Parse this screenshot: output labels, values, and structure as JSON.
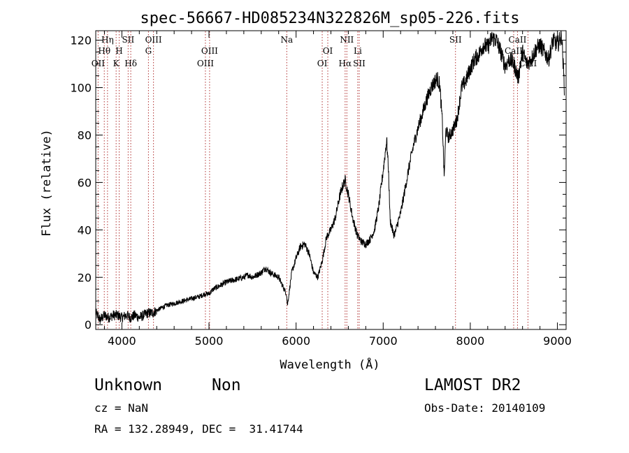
{
  "chart_data": {
    "type": "line",
    "title": "spec-56667-HD085234N322826M_sp05-226.fits",
    "xlabel": "Wavelength (Å)",
    "ylabel": "Flux (relative)",
    "xlim": [
      3700,
      9100
    ],
    "ylim": [
      -2,
      124
    ],
    "xticks": [
      4000,
      5000,
      6000,
      7000,
      8000,
      9000
    ],
    "yticks": [
      0,
      20,
      40,
      60,
      80,
      100,
      120
    ],
    "grid": false,
    "line_color": "#000000",
    "marker_color": "#b03030",
    "spectrum": {
      "x": [
        3700,
        3750,
        3800,
        3850,
        3900,
        3950,
        4000,
        4050,
        4100,
        4150,
        4200,
        4250,
        4300,
        4350,
        4400,
        4450,
        4500,
        4600,
        4700,
        4800,
        4900,
        4950,
        5000,
        5050,
        5100,
        5150,
        5200,
        5300,
        5400,
        5450,
        5500,
        5550,
        5600,
        5650,
        5700,
        5750,
        5800,
        5850,
        5890,
        5900,
        5950,
        6000,
        6050,
        6100,
        6150,
        6200,
        6250,
        6300,
        6350,
        6400,
        6450,
        6500,
        6530,
        6563,
        6600,
        6650,
        6700,
        6750,
        6800,
        6850,
        6900,
        6950,
        7000,
        7040,
        7060,
        7080,
        7100,
        7120,
        7140,
        7160,
        7200,
        7250,
        7300,
        7350,
        7400,
        7450,
        7500,
        7550,
        7600,
        7620,
        7650,
        7680,
        7700,
        7720,
        7750,
        7800,
        7850,
        7900,
        7950,
        8000,
        8050,
        8100,
        8150,
        8200,
        8250,
        8300,
        8350,
        8400,
        8450,
        8500,
        8550,
        8600,
        8650,
        8700,
        8750,
        8800,
        8850,
        8900,
        8950,
        9000,
        9050,
        9080
      ],
      "y": [
        5,
        2,
        4,
        3,
        4,
        4,
        3,
        4,
        3,
        4,
        3,
        4,
        5,
        5,
        6,
        7,
        8,
        9,
        10,
        11,
        12,
        13,
        13,
        15,
        16,
        17,
        18,
        19,
        20,
        21,
        20,
        21,
        22,
        24,
        22,
        21,
        20,
        16,
        13,
        8,
        22,
        28,
        33,
        34,
        30,
        22,
        20,
        27,
        37,
        40,
        45,
        54,
        58,
        61,
        55,
        45,
        38,
        35,
        34,
        36,
        40,
        50,
        65,
        78,
        66,
        44,
        41,
        38,
        39,
        42,
        47,
        57,
        67,
        76,
        83,
        89,
        95,
        100,
        103,
        104,
        101,
        85,
        62,
        82,
        79,
        82,
        87,
        100,
        103,
        108,
        112,
        114,
        118,
        117,
        121,
        120,
        115,
        109,
        112,
        110,
        104,
        115,
        110,
        112,
        116,
        118,
        115,
        112,
        120,
        118,
        122,
        100
      ]
    },
    "line_markers": [
      {
        "label": "Hη",
        "x": 3835,
        "row": 1
      },
      {
        "label": "Hθ",
        "x": 3798,
        "row": 2
      },
      {
        "label": "OII",
        "x": 3727,
        "row": 3
      },
      {
        "label": "SII",
        "x": 4072,
        "row": 1
      },
      {
        "label": "H",
        "x": 3969,
        "row": 2
      },
      {
        "label": "K",
        "x": 3934,
        "row": 3
      },
      {
        "label": "Hδ",
        "x": 4102,
        "row": 3
      },
      {
        "label": "OIII",
        "x": 4363,
        "row": 1
      },
      {
        "label": "G",
        "x": 4305,
        "row": 2
      },
      {
        "label": "OIII",
        "x": 5007,
        "row": 2
      },
      {
        "label": "OIII",
        "x": 4959,
        "row": 3
      },
      {
        "label": "Na",
        "x": 5893,
        "row": 1
      },
      {
        "label": "OI",
        "x": 6364,
        "row": 2
      },
      {
        "label": "OI",
        "x": 6300,
        "row": 3
      },
      {
        "label": "NII",
        "x": 6583,
        "row": 1
      },
      {
        "label": "Hα",
        "x": 6563,
        "row": 3
      },
      {
        "label": "Li",
        "x": 6708,
        "row": 2
      },
      {
        "label": "SII",
        "x": 6725,
        "row": 3
      },
      {
        "label": "SII",
        "x": 7830,
        "row": 1
      },
      {
        "label": "CaII",
        "x": 8542,
        "row": 1
      },
      {
        "label": "CaII",
        "x": 8498,
        "row": 2
      },
      {
        "label": "CaII",
        "x": 8662,
        "row": 3
      }
    ]
  },
  "info": {
    "class_label": "Unknown",
    "subclass_label": "Non",
    "survey": "LAMOST DR2",
    "cz": "cz = NaN",
    "obs_date": "Obs-Date: 20140109",
    "coords": "RA = 132.28949, DEC =  31.41744"
  }
}
